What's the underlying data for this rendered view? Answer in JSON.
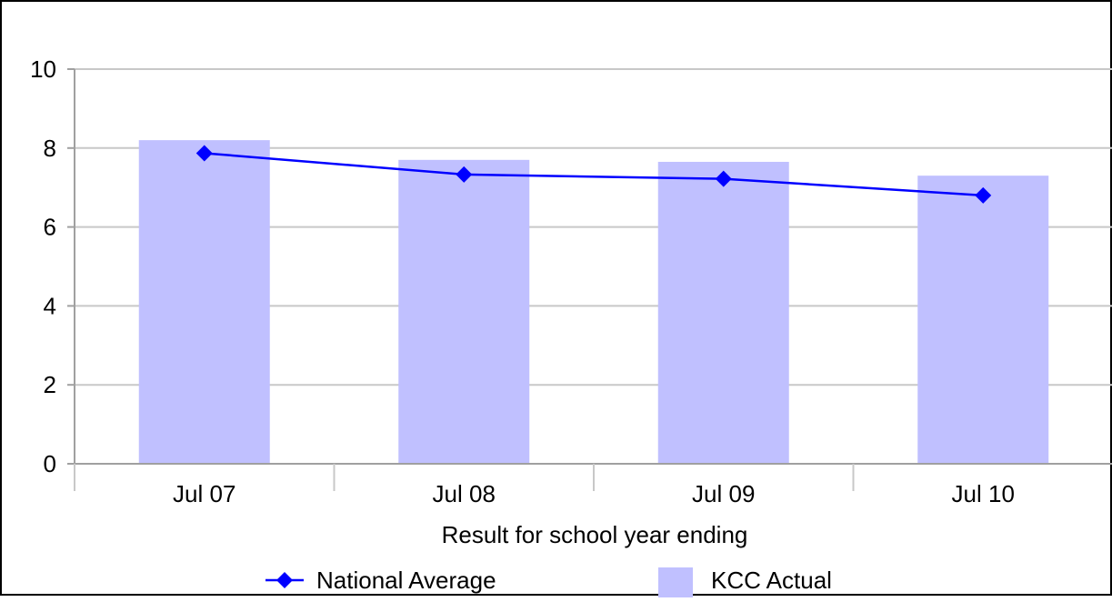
{
  "chart_data": {
    "type": "bar",
    "title": "",
    "xlabel": "Result for school year ending",
    "ylabel": "",
    "categories": [
      "Jul 07",
      "Jul 08",
      "Jul 09",
      "Jul 10"
    ],
    "ylim": [
      0,
      10
    ],
    "yticks": [
      "0",
      "2",
      "4",
      "6",
      "8",
      "10"
    ],
    "grid": true,
    "legend_position": "bottom",
    "series": [
      {
        "name": "KCC Actual",
        "type": "bar",
        "color": "#c0c0ff",
        "values": [
          8.2,
          7.7,
          7.65,
          7.3
        ]
      },
      {
        "name": "National Average",
        "type": "line",
        "color": "#0000ff",
        "marker": "diamond",
        "values": [
          7.87,
          7.33,
          7.22,
          6.8
        ]
      }
    ]
  }
}
